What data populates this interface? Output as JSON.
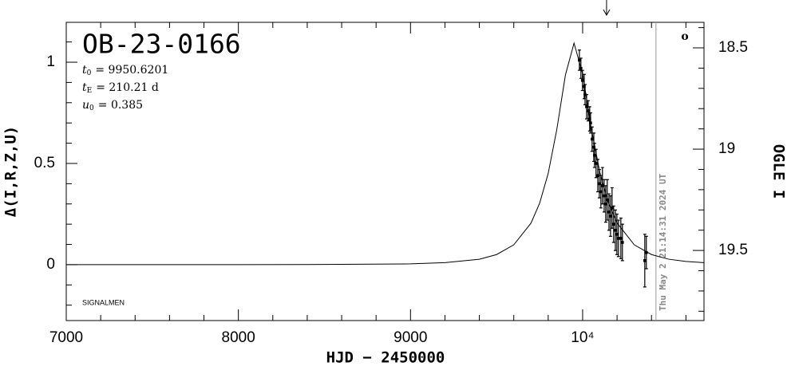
{
  "chart_data": {
    "type": "lightcurve",
    "title": "OB-23-0166",
    "parameters": [
      {
        "symbol": "t",
        "subscript": "0",
        "text": "= 9950.6201"
      },
      {
        "symbol": "t",
        "subscript": "E",
        "text": "= 210.21 d"
      },
      {
        "symbol": "u",
        "subscript": "0",
        "text": "= 0.385"
      }
    ],
    "credit": "SIGNALMEN",
    "symbol": "o",
    "timestamp": "Thu May  2 21:14:31 2024 UT",
    "timestamp_hjd": 10426,
    "arrow_hjd": 10139,
    "xlabel": "HJD − 2450000",
    "ylabel": "Δ(I,R,Z,U)",
    "y2label": "OGLE I",
    "xlim": [
      7000,
      10705
    ],
    "xticks": [
      7000,
      8000,
      9000,
      {
        "value": 10000,
        "label": "10⁴"
      }
    ],
    "ylim": [
      -0.276,
      1.197
    ],
    "yticks": [
      0,
      0.5,
      1
    ],
    "y2lim": [
      19.846,
      18.374
    ],
    "y2ticks": [
      18.5,
      19,
      19.5
    ],
    "model": {
      "color": "#000000",
      "x": [
        7000,
        8000,
        8500,
        9000,
        9200,
        9400,
        9500,
        9600,
        9700,
        9750,
        9800,
        9850,
        9900,
        9950,
        10000,
        10050,
        10100,
        10150,
        10200,
        10300,
        10400,
        10500,
        10600,
        10705
      ],
      "values": [
        0.0001,
        0.0003,
        0.001,
        0.004,
        0.01,
        0.027,
        0.05,
        0.098,
        0.205,
        0.303,
        0.451,
        0.668,
        0.937,
        1.094,
        0.943,
        0.674,
        0.456,
        0.306,
        0.206,
        0.098,
        0.05,
        0.027,
        0.016,
        0.01
      ]
    },
    "observations": {
      "color": "#000000",
      "x": [
        9981,
        9990,
        9999,
        10009,
        10014,
        10023,
        10032,
        10041,
        10046,
        10055,
        10065,
        10069,
        10078,
        10088,
        10097,
        10106,
        10115,
        10125,
        10134,
        10143,
        10153,
        10162,
        10171,
        10180,
        10190,
        10199,
        10208,
        10222,
        10231,
        10361,
        10370
      ],
      "values": [
        1.01,
        0.97,
        0.91,
        0.88,
        0.84,
        0.78,
        0.76,
        0.72,
        0.7,
        0.62,
        0.58,
        0.54,
        0.5,
        0.44,
        0.4,
        0.36,
        0.39,
        0.34,
        0.3,
        0.32,
        0.26,
        0.24,
        0.28,
        0.2,
        0.17,
        0.15,
        0.13,
        0.13,
        0.11,
        0.02,
        0.06
      ],
      "errors": [
        0.05,
        0.05,
        0.05,
        0.06,
        0.05,
        0.06,
        0.05,
        0.06,
        0.05,
        0.06,
        0.07,
        0.06,
        0.07,
        0.08,
        0.07,
        0.08,
        0.09,
        0.08,
        0.09,
        0.1,
        0.09,
        0.1,
        0.1,
        0.09,
        0.1,
        0.1,
        0.09,
        0.1,
        0.09,
        0.13,
        0.08
      ]
    }
  }
}
